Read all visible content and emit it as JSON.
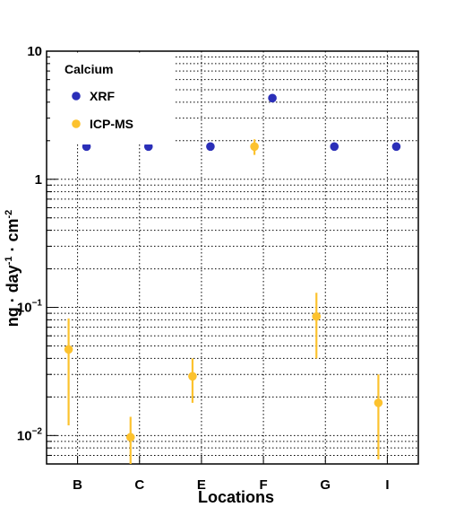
{
  "chart_data": {
    "type": "scatter",
    "title": "",
    "xlabel": "Locations",
    "ylabel_parts": {
      "base1": "ng · day",
      "sup1": "-1",
      "base2": " · cm",
      "sup2": "-2"
    },
    "y_scale": "log",
    "ylim": [
      0.006,
      10
    ],
    "categories": [
      "B",
      "C",
      "E",
      "F",
      "G",
      "I"
    ],
    "y_ticks": [
      {
        "value": 10,
        "base": "10",
        "exp": ""
      },
      {
        "value": 1,
        "base": "1",
        "exp": ""
      },
      {
        "value": 0.1,
        "base": "10",
        "exp": "−1"
      },
      {
        "value": 0.01,
        "base": "10",
        "exp": "−2"
      }
    ],
    "grid": true,
    "legend": {
      "title": "Calcium",
      "placement": "top-left"
    },
    "series": [
      {
        "name": "XRF",
        "color": "#2b2fb8",
        "offset": "right",
        "points": [
          {
            "category": "B",
            "y": 1.8
          },
          {
            "category": "C",
            "y": 1.8
          },
          {
            "category": "E",
            "y": 1.8
          },
          {
            "category": "F",
            "y": 4.3
          },
          {
            "category": "G",
            "y": 1.8
          },
          {
            "category": "I",
            "y": 1.8
          }
        ]
      },
      {
        "name": "ICP-MS",
        "color": "#fcc22e",
        "offset": "left",
        "points": [
          {
            "category": "B",
            "y": 0.047,
            "err_low": 0.012,
            "err_high": 0.082
          },
          {
            "category": "C",
            "y": 0.0097,
            "err_low": 0.006,
            "err_high": 0.014
          },
          {
            "category": "E",
            "y": 0.029,
            "err_low": 0.018,
            "err_high": 0.04
          },
          {
            "category": "F",
            "y": 1.8,
            "err_low": 1.55,
            "err_high": 2.05
          },
          {
            "category": "G",
            "y": 0.085,
            "err_low": 0.04,
            "err_high": 0.13
          },
          {
            "category": "I",
            "y": 0.018,
            "err_low": 0.0065,
            "err_high": 0.03
          }
        ]
      }
    ]
  }
}
